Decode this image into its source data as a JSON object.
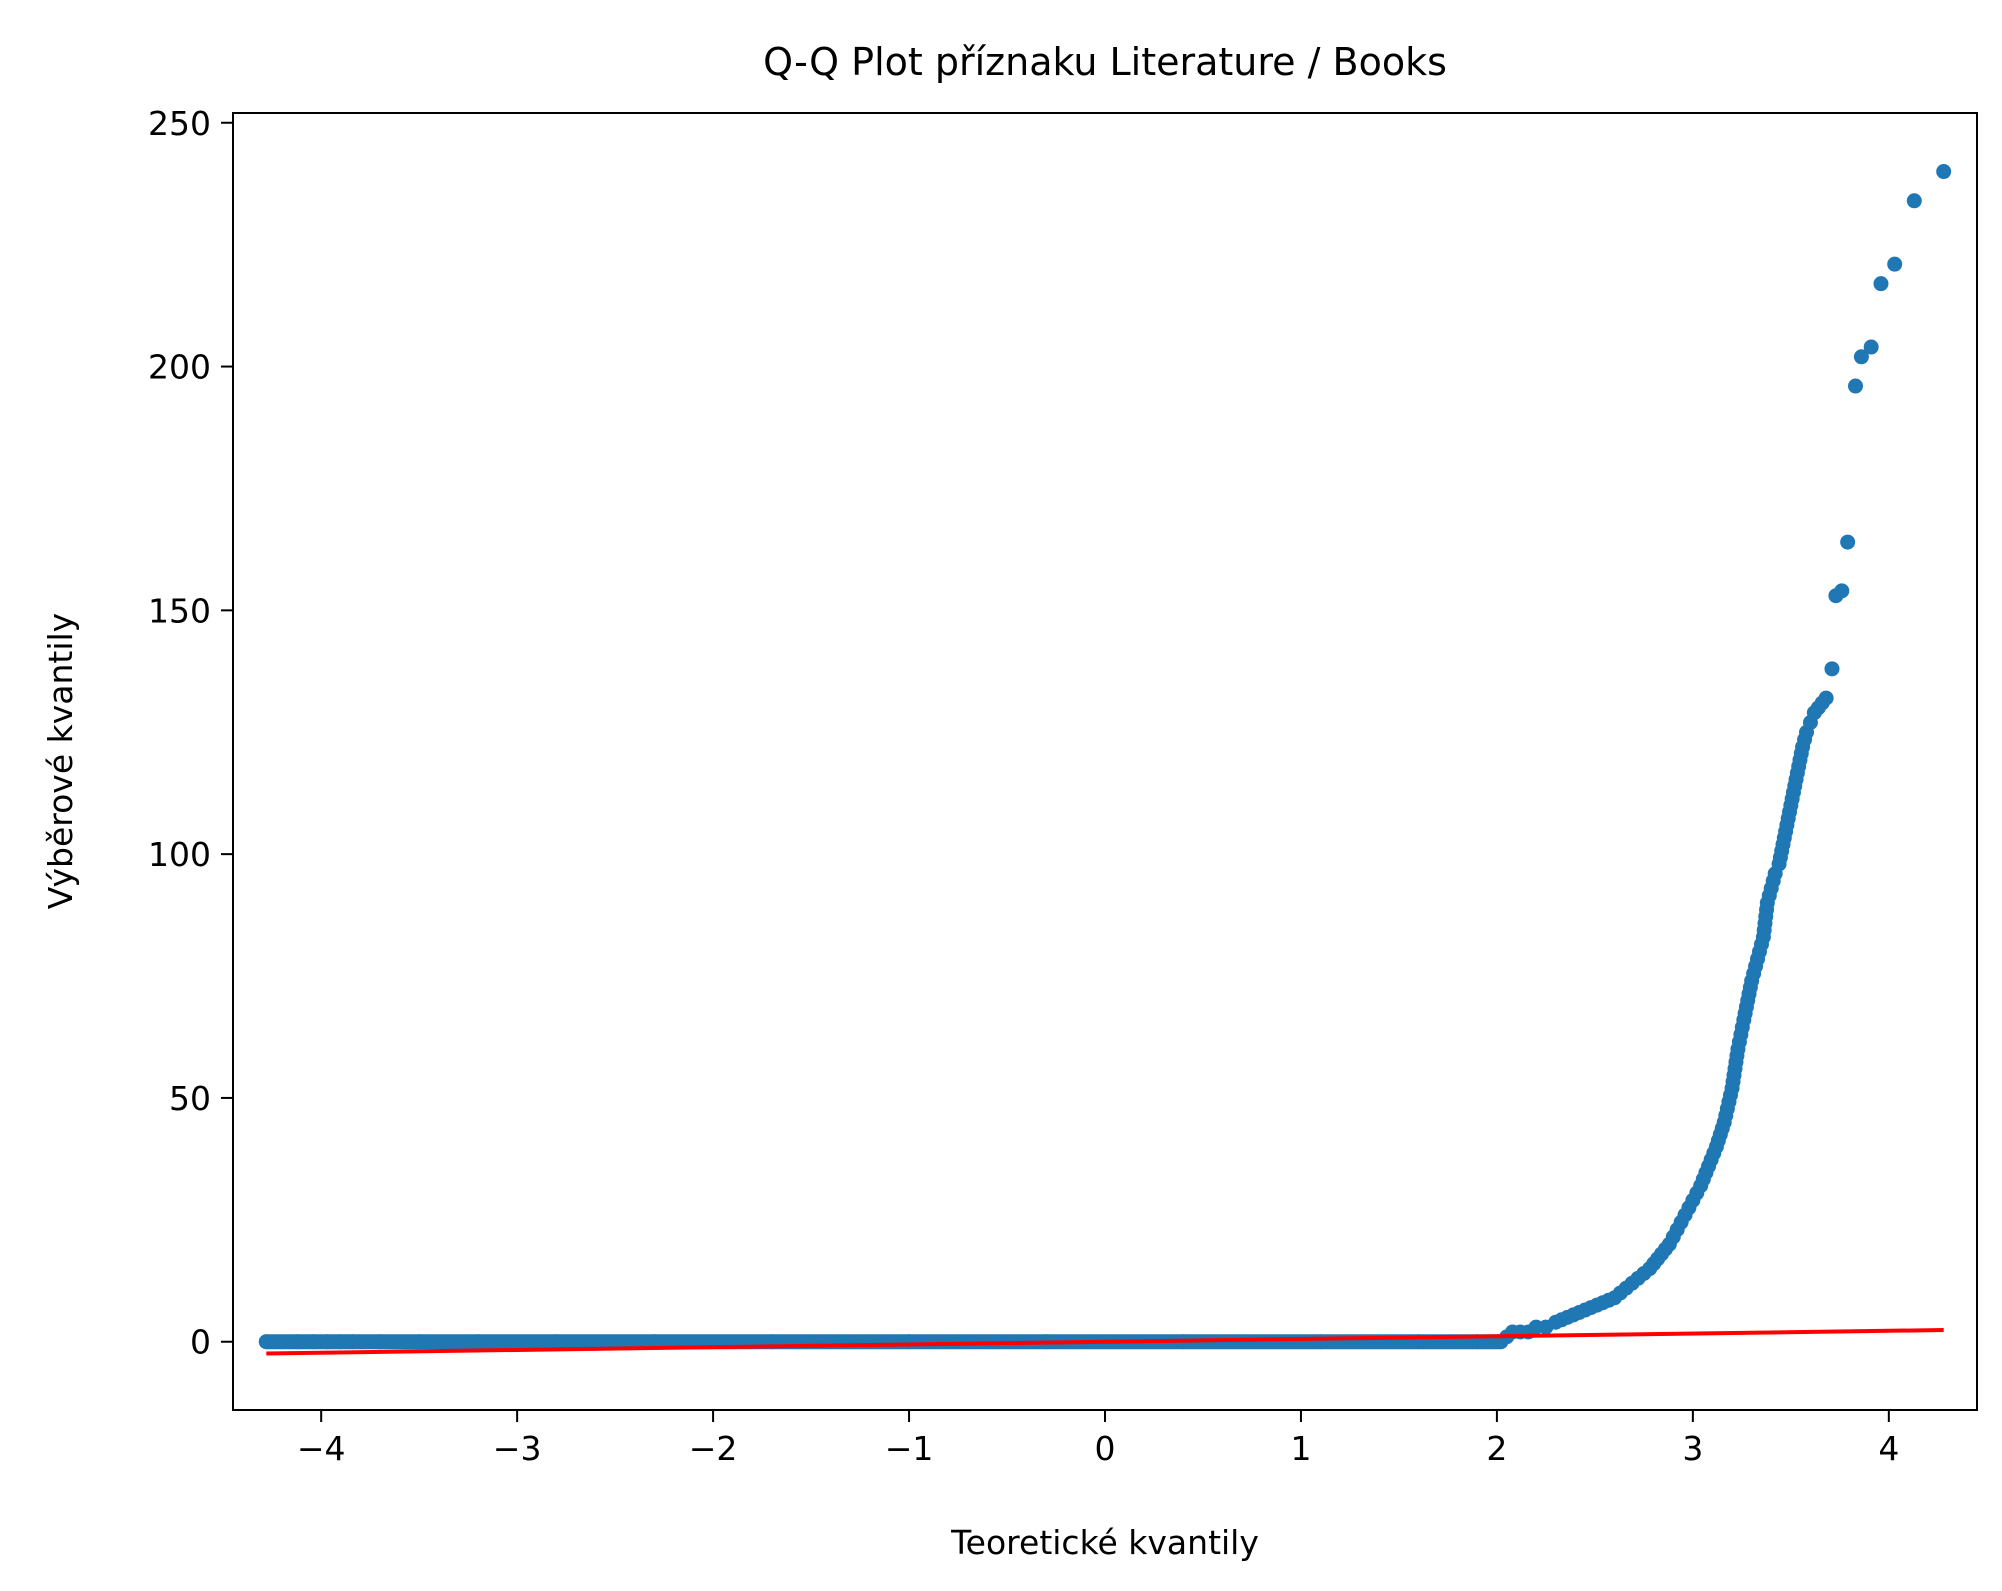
{
  "chart_data": {
    "type": "scatter",
    "title": "Q-Q Plot příznaku Literature / Books",
    "xlabel": "Teoretické kvantily",
    "ylabel": "Výběrové kvantily",
    "xlim": [
      -4.45,
      4.45
    ],
    "ylim": [
      -14,
      252
    ],
    "grid": false,
    "legend": "none",
    "x_ticks": [
      -4,
      -3,
      -2,
      -1,
      0,
      1,
      2,
      3,
      4
    ],
    "x_tick_labels": [
      "−4",
      "−3",
      "−2",
      "−1",
      "0",
      "1",
      "2",
      "3",
      "4"
    ],
    "y_ticks": [
      0,
      50,
      100,
      150,
      200,
      250
    ],
    "y_tick_labels": [
      "0",
      "50",
      "100",
      "150",
      "200",
      "250"
    ],
    "point_color": "#1f77b4",
    "line_color": "#ff0000",
    "fit_line": {
      "x": [
        -4.28,
        4.28
      ],
      "y": [
        -2.4,
        2.4
      ]
    },
    "points": {
      "x": [
        -4.28,
        -4.12,
        -4.04,
        -3.97,
        -3.9,
        -3.84,
        -3.7,
        -3.5,
        -3.2,
        -2.8,
        -2.3,
        -1.7,
        -1.0,
        -0.3,
        0.4,
        1.1,
        1.6,
        1.9,
        2.02,
        2.05,
        2.08,
        2.12,
        2.16,
        2.2,
        2.25,
        2.3,
        2.36,
        2.42,
        2.48,
        2.54,
        2.6,
        2.66,
        2.72,
        2.78,
        2.84,
        2.88,
        2.92,
        2.96,
        3.0,
        3.04,
        3.08,
        3.12,
        3.16,
        3.2,
        3.23,
        3.26,
        3.28,
        3.3,
        3.32,
        3.34,
        3.36,
        3.38,
        3.4,
        3.42,
        3.44,
        3.46,
        3.48,
        3.5,
        3.52,
        3.54,
        3.56,
        3.58,
        3.6,
        3.62,
        3.64,
        3.66,
        3.68,
        3.71,
        3.73,
        3.76,
        3.79,
        3.83,
        3.86,
        3.91,
        3.96,
        4.03,
        4.13,
        4.28
      ],
      "y": [
        0,
        0,
        0,
        0,
        0,
        0,
        0,
        0,
        0,
        0,
        0,
        0,
        0,
        0,
        0,
        0,
        0,
        0,
        0,
        1,
        2,
        2,
        2,
        3,
        3,
        4,
        5,
        6,
        7,
        8,
        9,
        11,
        13,
        15,
        18,
        20,
        23,
        26,
        29,
        32,
        36,
        40,
        45,
        52,
        60,
        66,
        70,
        74,
        77,
        80,
        83,
        90,
        93,
        96,
        98,
        102,
        106,
        110,
        114,
        118,
        122,
        125,
        127,
        129,
        130,
        131,
        132,
        138,
        153,
        154,
        164,
        196,
        202,
        204,
        217,
        221,
        234,
        240
      ]
    }
  }
}
